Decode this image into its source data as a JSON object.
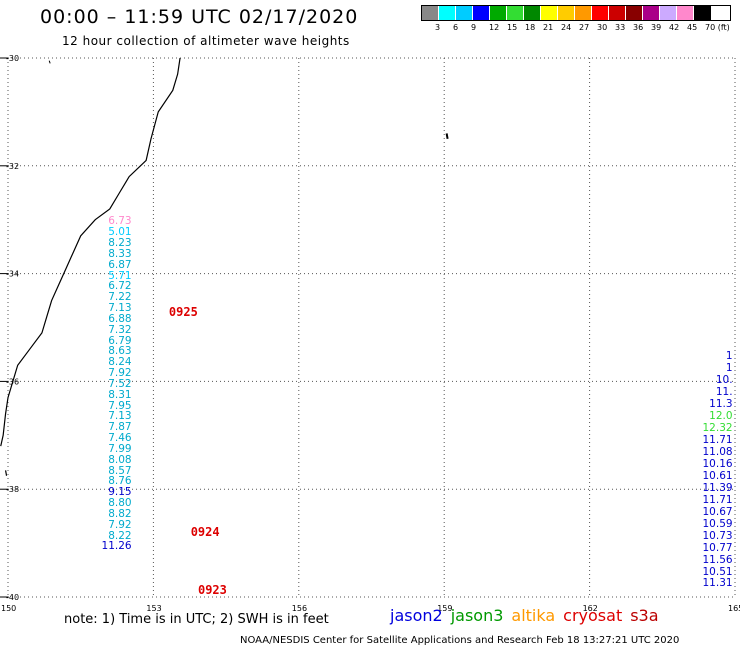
{
  "header": {
    "title": "00:00 – 11:59 UTC 02/17/2020",
    "subtitle": "12 hour collection of altimeter wave heights"
  },
  "legend": {
    "colors": [
      "#888888",
      "#00ffff",
      "#00ccff",
      "#0000ff",
      "#00aa00",
      "#33dd33",
      "#008800",
      "#ffff00",
      "#ffcc00",
      "#ff9900",
      "#ff0000",
      "#cc0000",
      "#880000",
      "#aa0088",
      "#ccaaff",
      "#ff88cc",
      "#000000"
    ],
    "ticks": [
      "3",
      "6",
      "9",
      "12",
      "15",
      "18",
      "21",
      "24",
      "27",
      "30",
      "33",
      "36",
      "39",
      "42",
      "45",
      "70 (ft)"
    ]
  },
  "map": {
    "lat_labels": [
      "-30",
      "-32",
      "-34",
      "-36",
      "-38",
      "-40"
    ],
    "lon_labels": [
      "150",
      "153",
      "156",
      "159",
      "162",
      "165"
    ],
    "lon_range": [
      150,
      165
    ],
    "lat_range": [
      -30,
      -40
    ]
  },
  "tracks": [
    {
      "name": "track-west",
      "lon_anchor": 152.55,
      "lat_start": -33.05,
      "lat_step": -0.201,
      "values": [
        {
          "v": "6.73",
          "c": "#ff88cc"
        },
        {
          "v": "5.01",
          "c": "#00ccff"
        },
        {
          "v": "8.23",
          "c": "#00aacc"
        },
        {
          "v": "8.33",
          "c": "#00aacc"
        },
        {
          "v": "6.87",
          "c": "#00aacc"
        },
        {
          "v": "5.71",
          "c": "#00ccff"
        },
        {
          "v": "6.72",
          "c": "#00aacc"
        },
        {
          "v": "7.22",
          "c": "#00aacc"
        },
        {
          "v": "7.13",
          "c": "#00aacc"
        },
        {
          "v": "6.88",
          "c": "#00aacc"
        },
        {
          "v": "7.32",
          "c": "#00aacc"
        },
        {
          "v": "6.79",
          "c": "#00aacc"
        },
        {
          "v": "8.63",
          "c": "#00aacc"
        },
        {
          "v": "8.24",
          "c": "#00aacc"
        },
        {
          "v": "7.92",
          "c": "#00aacc"
        },
        {
          "v": "7.52",
          "c": "#00aacc"
        },
        {
          "v": "8.31",
          "c": "#00aacc"
        },
        {
          "v": "7.95",
          "c": "#00aacc"
        },
        {
          "v": "7.13",
          "c": "#00aacc"
        },
        {
          "v": "7.87",
          "c": "#00aacc"
        },
        {
          "v": "7.46",
          "c": "#00aacc"
        },
        {
          "v": "7.99",
          "c": "#00aacc"
        },
        {
          "v": "8.08",
          "c": "#00aacc"
        },
        {
          "v": "8.57",
          "c": "#00aacc"
        },
        {
          "v": "8.76",
          "c": "#00aacc"
        },
        {
          "v": "9.15",
          "c": "#0000cc"
        },
        {
          "v": "8.80",
          "c": "#00aacc"
        },
        {
          "v": "8.82",
          "c": "#00aacc"
        },
        {
          "v": "7.92",
          "c": "#00aacc"
        },
        {
          "v": "8.22",
          "c": "#00aacc"
        },
        {
          "v": "11.26",
          "c": "#0000cc"
        }
      ]
    },
    {
      "name": "track-east",
      "lon_anchor": 164.95,
      "lat_start": -35.55,
      "lat_step": -0.222,
      "values": [
        {
          "v": "1",
          "c": "#0000cc"
        },
        {
          "v": "1",
          "c": "#0000cc"
        },
        {
          "v": "10.",
          "c": "#0000cc"
        },
        {
          "v": "11.",
          "c": "#0000cc"
        },
        {
          "v": "11.3",
          "c": "#0000cc"
        },
        {
          "v": "12.0",
          "c": "#33dd33"
        },
        {
          "v": "12.32",
          "c": "#33dd33"
        },
        {
          "v": "11.71",
          "c": "#0000cc"
        },
        {
          "v": "11.08",
          "c": "#0000cc"
        },
        {
          "v": "10.16",
          "c": "#0000cc"
        },
        {
          "v": "10.61",
          "c": "#0000cc"
        },
        {
          "v": "11.39",
          "c": "#0000cc"
        },
        {
          "v": "11.71",
          "c": "#0000cc"
        },
        {
          "v": "10.67",
          "c": "#0000cc"
        },
        {
          "v": "10.59",
          "c": "#0000cc"
        },
        {
          "v": "10.73",
          "c": "#0000cc"
        },
        {
          "v": "10.77",
          "c": "#0000cc"
        },
        {
          "v": "11.56",
          "c": "#0000cc"
        },
        {
          "v": "10.51",
          "c": "#0000cc"
        },
        {
          "v": "11.31",
          "c": "#0000cc"
        }
      ]
    }
  ],
  "times": [
    {
      "label": "0925",
      "lon": 153.65,
      "lat": -34.72
    },
    {
      "label": "0924",
      "lon": 154.1,
      "lat": -38.8
    },
    {
      "label": "0923",
      "lon": 154.25,
      "lat": -39.87
    }
  ],
  "note": "note: 1) Time is in UTC; 2) SWH is in feet",
  "satellites": [
    {
      "name": "jason2",
      "color": "#0000dd"
    },
    {
      "name": "jason3",
      "color": "#009900"
    },
    {
      "name": "altika",
      "color": "#ff9900"
    },
    {
      "name": "cryosat",
      "color": "#dd0000"
    },
    {
      "name": "s3a",
      "color": "#bb0000"
    }
  ],
  "footer": "NOAA/NESDIS Center for Satellite Applications and Research   Feb 18 13:27:21 UTC 2020"
}
